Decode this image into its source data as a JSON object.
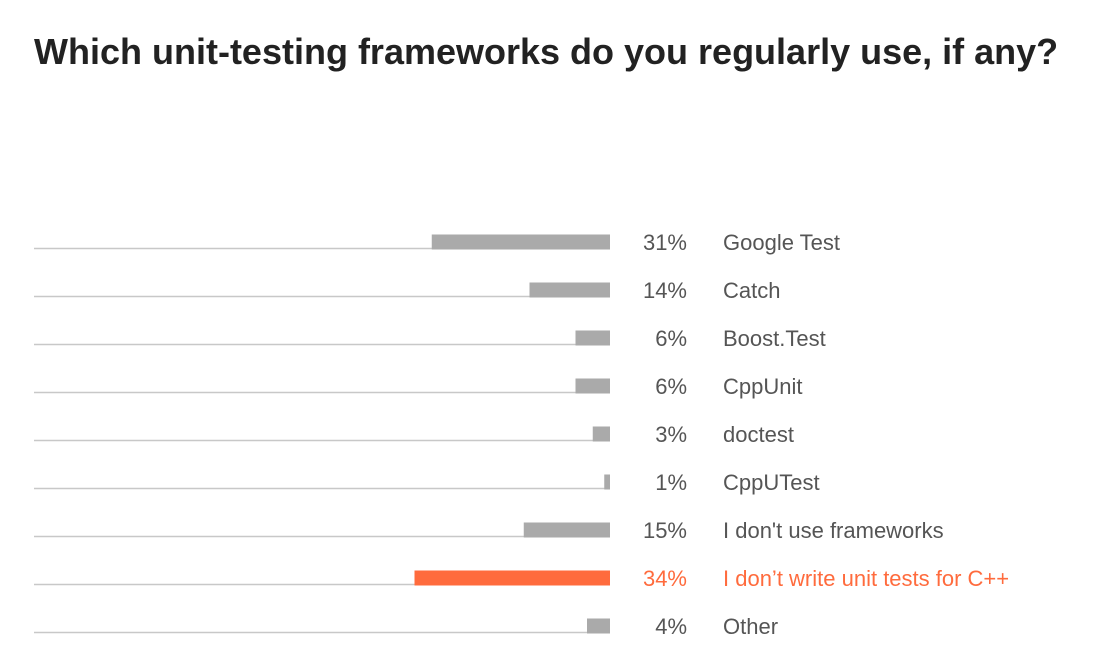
{
  "title": "Which unit-testing frameworks do you regularly use, if any?",
  "colors": {
    "bar": "#aaaaaa",
    "highlight": "#ff6b3d",
    "track": "#c8c8c8",
    "text": "#555555",
    "title": "#222222"
  },
  "chart_data": {
    "type": "bar",
    "orientation": "horizontal",
    "title": "Which unit-testing frameworks do you regularly use, if any?",
    "xlim": [
      0,
      100
    ],
    "unit": "%",
    "grid": false,
    "categories": [
      "Google Test",
      "Catch",
      "Boost.Test",
      "CppUnit",
      "doctest",
      "CppUTest",
      "I don't use frameworks",
      "I don’t write unit tests for C++",
      "Other"
    ],
    "values": [
      31,
      14,
      6,
      6,
      3,
      1,
      15,
      34,
      4
    ],
    "value_labels": [
      "31%",
      "14%",
      "6%",
      "6%",
      "3%",
      "1%",
      "15%",
      "34%",
      "4%"
    ],
    "highlighted": [
      false,
      false,
      false,
      false,
      false,
      false,
      false,
      true,
      false
    ]
  }
}
